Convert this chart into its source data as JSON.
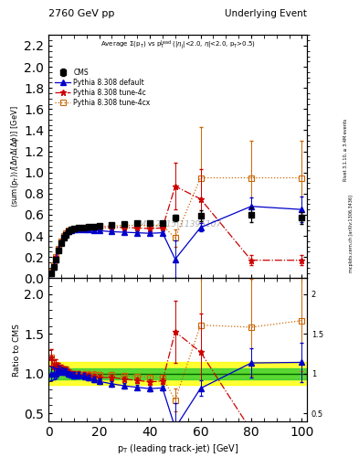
{
  "title_left": "2760 GeV pp",
  "title_right": "Underlying Event",
  "subtitle": "Average Σ(p_{T}) vs p_{T}^{lead} (|η_{j}|<2.0, η|<2.0, p_{T}>0.5)",
  "ylabel_main": "⟨sum(p_{T})⟩/[ΔηΔ(Δφ)] [GeV]",
  "ylabel_ratio": "Ratio to CMS",
  "xlabel": "p_{T} (leading track-jet) [GeV]",
  "right_label": "mcplots.cern.ch [arXiv:1306.3436]",
  "right_label2": "Rivet 3.1.10, ≥ 3.4M events",
  "watermark": "CMS_2015|11395107",
  "ylim_main": [
    0.0,
    2.3
  ],
  "ylim_ratio": [
    0.4,
    2.2
  ],
  "xlim": [
    0,
    102
  ],
  "cms_x": [
    1,
    2,
    3,
    4,
    5,
    6,
    7,
    8,
    9,
    10,
    12,
    14,
    16,
    18,
    20,
    25,
    30,
    35,
    40,
    45,
    50,
    60,
    80,
    100
  ],
  "cms_y": [
    0.05,
    0.11,
    0.18,
    0.26,
    0.33,
    0.38,
    0.41,
    0.44,
    0.46,
    0.47,
    0.475,
    0.48,
    0.485,
    0.49,
    0.5,
    0.505,
    0.515,
    0.52,
    0.525,
    0.525,
    0.57,
    0.59,
    0.6,
    0.57
  ],
  "cms_yerr": [
    0.004,
    0.007,
    0.01,
    0.012,
    0.012,
    0.012,
    0.012,
    0.012,
    0.012,
    0.015,
    0.015,
    0.015,
    0.015,
    0.015,
    0.015,
    0.015,
    0.015,
    0.015,
    0.015,
    0.015,
    0.03,
    0.05,
    0.07,
    0.06
  ],
  "py_default_x": [
    1,
    2,
    3,
    4,
    5,
    6,
    7,
    8,
    9,
    10,
    12,
    14,
    16,
    18,
    20,
    25,
    30,
    35,
    40,
    45,
    50,
    60,
    80,
    100
  ],
  "py_default_y": [
    0.05,
    0.11,
    0.18,
    0.27,
    0.34,
    0.39,
    0.42,
    0.44,
    0.455,
    0.46,
    0.465,
    0.465,
    0.46,
    0.455,
    0.45,
    0.44,
    0.435,
    0.43,
    0.425,
    0.43,
    0.18,
    0.48,
    0.68,
    0.65
  ],
  "py_default_yerr": [
    0.002,
    0.004,
    0.006,
    0.008,
    0.008,
    0.008,
    0.008,
    0.008,
    0.008,
    0.008,
    0.01,
    0.01,
    0.01,
    0.01,
    0.01,
    0.01,
    0.01,
    0.01,
    0.01,
    0.01,
    0.18,
    0.04,
    0.08,
    0.12
  ],
  "py_4c_x": [
    1,
    2,
    3,
    4,
    5,
    6,
    7,
    8,
    9,
    10,
    12,
    14,
    16,
    18,
    20,
    25,
    30,
    35,
    40,
    45,
    50,
    60,
    80,
    100
  ],
  "py_4c_y": [
    0.06,
    0.12,
    0.2,
    0.28,
    0.35,
    0.4,
    0.43,
    0.45,
    0.46,
    0.465,
    0.47,
    0.47,
    0.47,
    0.47,
    0.475,
    0.48,
    0.48,
    0.475,
    0.47,
    0.475,
    0.87,
    0.75,
    0.17,
    0.17
  ],
  "py_4c_yerr": [
    0.002,
    0.004,
    0.006,
    0.008,
    0.008,
    0.008,
    0.008,
    0.008,
    0.008,
    0.008,
    0.01,
    0.01,
    0.01,
    0.01,
    0.01,
    0.01,
    0.01,
    0.01,
    0.01,
    0.01,
    0.22,
    0.28,
    0.05,
    0.05
  ],
  "py_4cx_x": [
    1,
    2,
    3,
    4,
    5,
    6,
    7,
    8,
    9,
    10,
    12,
    14,
    16,
    18,
    20,
    25,
    30,
    35,
    40,
    45,
    50,
    60,
    80,
    100
  ],
  "py_4cx_y": [
    0.06,
    0.12,
    0.2,
    0.28,
    0.35,
    0.4,
    0.43,
    0.45,
    0.46,
    0.465,
    0.47,
    0.475,
    0.48,
    0.485,
    0.49,
    0.495,
    0.5,
    0.5,
    0.5,
    0.5,
    0.38,
    0.95,
    0.95,
    0.95
  ],
  "py_4cx_yerr": [
    0.002,
    0.004,
    0.006,
    0.008,
    0.008,
    0.008,
    0.008,
    0.008,
    0.008,
    0.008,
    0.01,
    0.01,
    0.01,
    0.01,
    0.01,
    0.01,
    0.01,
    0.01,
    0.01,
    0.01,
    0.08,
    0.48,
    0.35,
    0.35
  ],
  "color_cms": "#000000",
  "color_default": "#0000cc",
  "color_4c": "#cc0000",
  "color_4cx": "#cc6600",
  "band_inner": [
    0.93,
    1.07
  ],
  "band_outer": [
    0.86,
    1.14
  ]
}
